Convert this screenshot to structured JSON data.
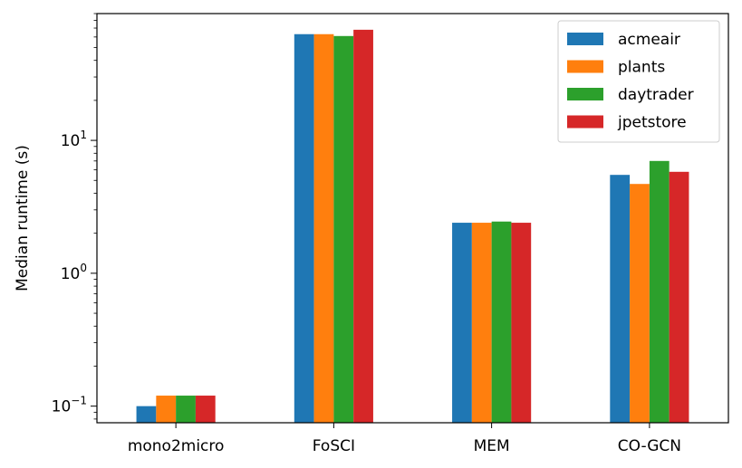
{
  "chart_data": {
    "type": "bar",
    "title": "",
    "xlabel": "",
    "ylabel": "Median runtime (s)",
    "yscale": "log",
    "ylim": [
      0.075,
      90
    ],
    "yticks": [
      {
        "value": 0.1,
        "base": "10",
        "exp": "−1"
      },
      {
        "value": 1,
        "base": "10",
        "exp": "0"
      },
      {
        "value": 10,
        "base": "10",
        "exp": "1"
      }
    ],
    "grid": false,
    "legend_position": "top-right",
    "categories": [
      "mono2micro",
      "FoSCI",
      "MEM",
      "CO-GCN"
    ],
    "series": [
      {
        "name": "acmeair",
        "color": "#1f77b4",
        "values": [
          0.1,
          63,
          2.4,
          5.5
        ]
      },
      {
        "name": "plants",
        "color": "#ff7f0e",
        "values": [
          0.12,
          63,
          2.4,
          4.7
        ]
      },
      {
        "name": "daytrader",
        "color": "#2ca02c",
        "values": [
          0.12,
          61,
          2.45,
          7.0
        ]
      },
      {
        "name": "jpetstore",
        "color": "#d62728",
        "values": [
          0.12,
          68,
          2.4,
          5.8
        ]
      }
    ]
  }
}
